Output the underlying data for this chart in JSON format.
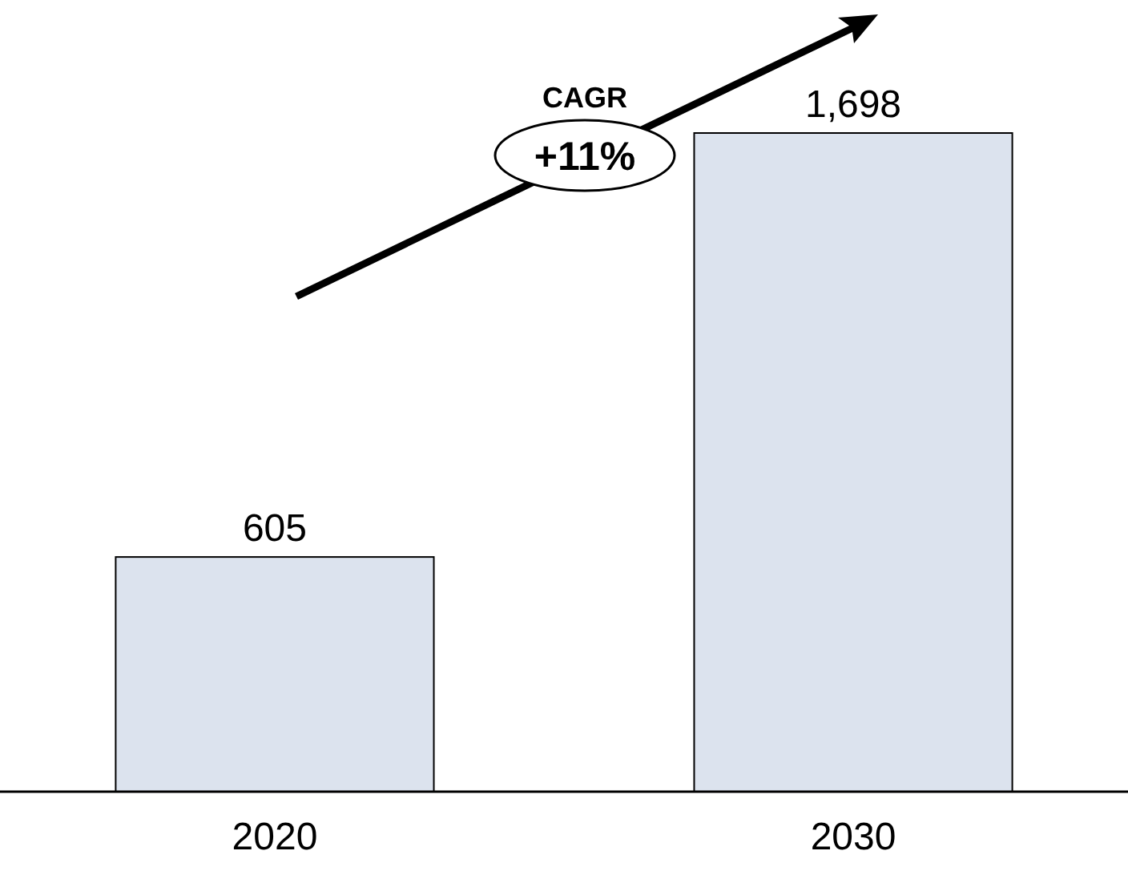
{
  "chart_data": {
    "type": "bar",
    "categories": [
      "2020",
      "2030"
    ],
    "values": [
      605,
      1698
    ],
    "value_labels": [
      "605",
      "1,698"
    ],
    "color": "#dce3ee",
    "annotations": [
      "CAGR",
      "+11%"
    ]
  }
}
